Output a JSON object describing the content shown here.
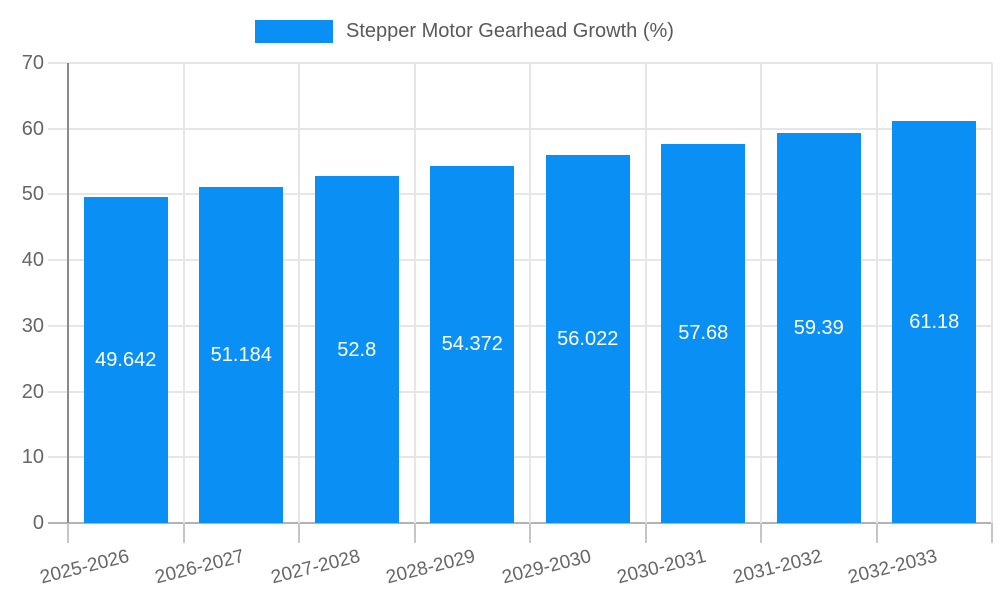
{
  "legend": {
    "label": "Stepper Motor Gearhead Growth (%)"
  },
  "chart_data": {
    "type": "bar",
    "title": "Stepper Motor Gearhead Growth (%)",
    "series_name": "Stepper Motor Gearhead Growth (%)",
    "categories": [
      "2025-2026",
      "2026-2027",
      "2027-2028",
      "2028-2029",
      "2029-2030",
      "2030-2031",
      "2031-2032",
      "2032-2033"
    ],
    "values": [
      49.642,
      51.184,
      52.8,
      54.372,
      56.022,
      57.68,
      59.39,
      61.18
    ],
    "value_labels": [
      "49.642",
      "51.184",
      "52.8",
      "54.372",
      "56.022",
      "57.68",
      "59.39",
      "61.18"
    ],
    "xlabel": "",
    "ylabel": "",
    "ylim": [
      0,
      70
    ],
    "yticks": [
      0,
      10,
      20,
      30,
      40,
      50,
      60,
      70
    ],
    "grid": true,
    "legend_position": "top",
    "value_labels_position": "center-of-bar",
    "x_label_rotation_deg": -14
  },
  "colors": {
    "bar": "#0A90F5",
    "grid": "#E6E6E6",
    "y_axis_line": "#8A8A8A",
    "x_axis_line": "#B3B3B3",
    "tick": "#C6C6C6",
    "axis_text": "#666666",
    "legend_text": "#595959",
    "value_label_text": "#FFFFFF",
    "background": "#FFFFFF"
  }
}
